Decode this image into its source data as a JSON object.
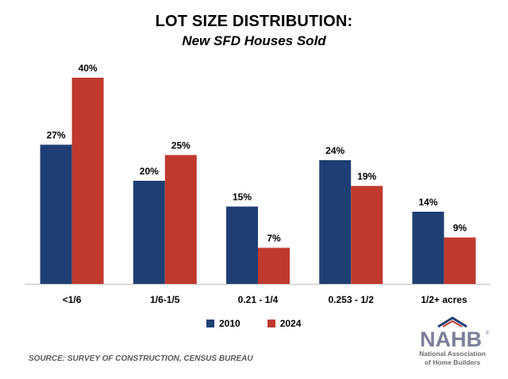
{
  "chart_data": {
    "type": "bar",
    "title": "LOT SIZE DISTRIBUTION:",
    "subtitle": "New SFD Houses Sold",
    "categories": [
      "<1/6",
      "1/6-1/5",
      "0.21 - 1/4",
      "0.253 - 1/2",
      "1/2+ acres"
    ],
    "series": [
      {
        "name": "2010",
        "values": [
          27,
          20,
          15,
          24,
          14
        ],
        "labels": [
          "27%",
          "20%",
          "15%",
          "24%",
          "14%"
        ],
        "color": "#1f3e74"
      },
      {
        "name": "2024",
        "values": [
          40,
          25,
          7,
          19,
          9
        ],
        "labels": [
          "40%",
          "25%",
          "7%",
          "19%",
          "9%"
        ],
        "color": "#c0392f"
      }
    ],
    "ylim": [
      0,
      40
    ],
    "xlabel": "",
    "ylabel": "",
    "grid": false,
    "legend_position": "bottom"
  },
  "source": "SOURCE: SURVEY OF CONSTRUCTION, CENSUS BUREAU",
  "logo": {
    "letters": "NAHB",
    "registered": "®",
    "line1": "National Association",
    "line2": "of Home Builders",
    "colors": {
      "letters": "#7d7f9a",
      "roof": "#c0392f",
      "roof_blue": "#1f3e74"
    }
  }
}
